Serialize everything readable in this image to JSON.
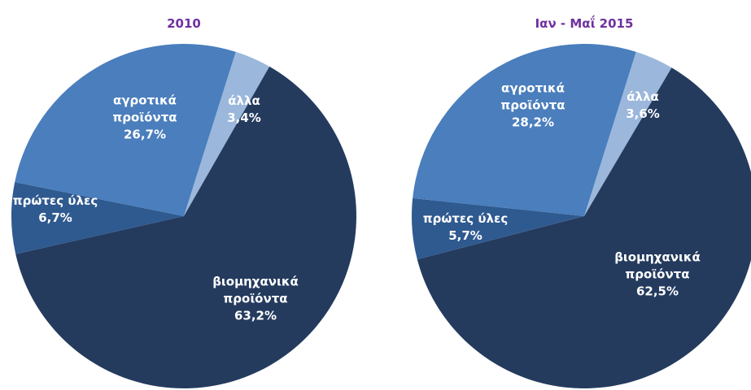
{
  "chart_data": [
    {
      "type": "pie",
      "title": "2010",
      "categories": [
        "άλλα",
        "βιομηχανικά προϊόντα",
        "πρώτες ύλες",
        "αγροτικά προϊόντα"
      ],
      "values": [
        3.4,
        63.2,
        6.7,
        26.7
      ],
      "value_labels": [
        "3,4%",
        "63,2%",
        "6,7%",
        "26,7%"
      ],
      "colors": [
        "#9bb7dc",
        "#243b5e",
        "#2f5a90",
        "#4a7ebd"
      ]
    },
    {
      "type": "pie",
      "title": "Ιαν - Μαΐ 2015",
      "categories": [
        "άλλα",
        "βιομηχανικά προϊόντα",
        "πρώτες ύλες",
        "αγροτικά προϊόντα"
      ],
      "values": [
        3.6,
        62.5,
        5.7,
        28.2
      ],
      "value_labels": [
        "3,6%",
        "62,5%",
        "5,7%",
        "28,2%"
      ],
      "colors": [
        "#9bb7dc",
        "#243b5e",
        "#2f5a90",
        "#4a7ebd"
      ]
    }
  ]
}
